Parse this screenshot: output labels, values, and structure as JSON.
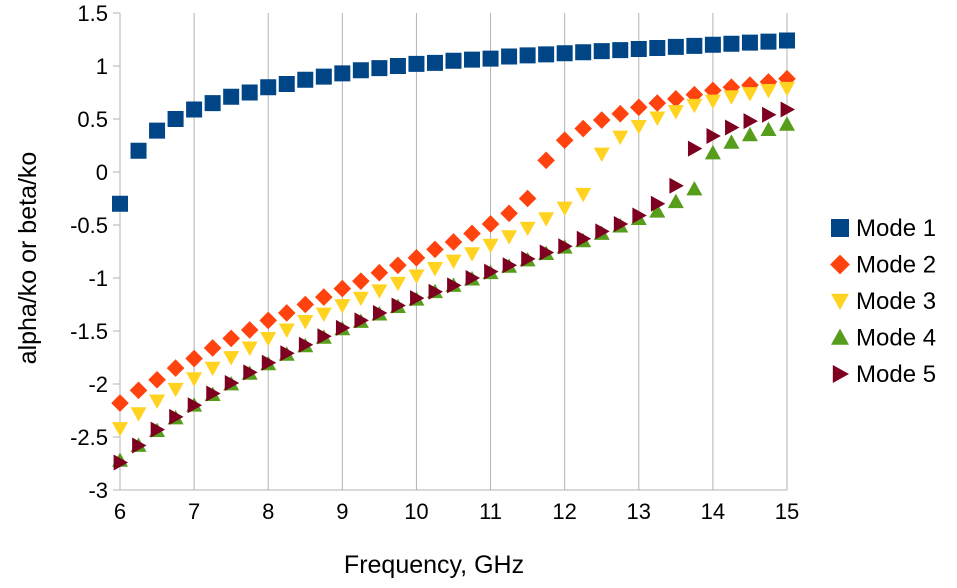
{
  "chart_data": {
    "type": "scatter",
    "title": "",
    "xlabel": "Frequency, GHz",
    "ylabel": "alpha/ko or beta/ko",
    "xlim": [
      6,
      15
    ],
    "ylim": [
      -3,
      1.5
    ],
    "xticks": [
      "6",
      "7",
      "8",
      "9",
      "10",
      "11",
      "12",
      "13",
      "14",
      "15"
    ],
    "yticks": [
      "1.5",
      "1",
      "0.5",
      "0",
      "-0.5",
      "-1",
      "-1.5",
      "-2",
      "-2.5",
      "-3"
    ],
    "grid": "vertical",
    "legend_position": "right",
    "series": [
      {
        "name": "Mode 1",
        "marker": "square",
        "color": "#004586",
        "x": [
          6,
          6.25,
          6.5,
          6.75,
          7,
          7.25,
          7.5,
          7.75,
          8,
          8.25,
          8.5,
          8.75,
          9,
          9.25,
          9.5,
          9.75,
          10,
          10.25,
          10.5,
          10.75,
          11,
          11.25,
          11.5,
          11.75,
          12,
          12.25,
          12.5,
          12.75,
          13,
          13.25,
          13.5,
          13.75,
          14,
          14.25,
          14.5,
          14.75,
          15
        ],
        "y": [
          -0.3,
          0.2,
          0.39,
          0.5,
          0.59,
          0.65,
          0.71,
          0.75,
          0.8,
          0.83,
          0.87,
          0.9,
          0.93,
          0.96,
          0.98,
          1.0,
          1.02,
          1.03,
          1.05,
          1.06,
          1.07,
          1.09,
          1.1,
          1.11,
          1.12,
          1.13,
          1.14,
          1.15,
          1.16,
          1.17,
          1.18,
          1.19,
          1.2,
          1.21,
          1.22,
          1.23,
          1.24
        ]
      },
      {
        "name": "Mode 2",
        "marker": "diamond",
        "color": "#ff420e",
        "x": [
          6,
          6.25,
          6.5,
          6.75,
          7,
          7.25,
          7.5,
          7.75,
          8,
          8.25,
          8.5,
          8.75,
          9,
          9.25,
          9.5,
          9.75,
          10,
          10.25,
          10.5,
          10.75,
          11,
          11.25,
          11.5,
          11.75,
          12,
          12.25,
          12.5,
          12.75,
          13,
          13.25,
          13.5,
          13.75,
          14,
          14.25,
          14.5,
          14.75,
          15
        ],
        "y": [
          -2.18,
          -2.06,
          -1.96,
          -1.85,
          -1.76,
          -1.66,
          -1.57,
          -1.49,
          -1.4,
          -1.33,
          -1.25,
          -1.18,
          -1.1,
          -1.03,
          -0.95,
          -0.88,
          -0.81,
          -0.73,
          -0.66,
          -0.58,
          -0.49,
          -0.39,
          -0.25,
          0.11,
          0.3,
          0.41,
          0.49,
          0.55,
          0.61,
          0.65,
          0.69,
          0.73,
          0.77,
          0.8,
          0.82,
          0.85,
          0.88
        ]
      },
      {
        "name": "Mode 3",
        "marker": "triangle-down",
        "color": "#ffd320",
        "x": [
          6,
          6.25,
          6.5,
          6.75,
          7,
          7.25,
          7.5,
          7.75,
          8,
          8.25,
          8.5,
          8.75,
          9,
          9.25,
          9.5,
          9.75,
          10,
          10.25,
          10.5,
          10.75,
          11,
          11.25,
          11.5,
          11.75,
          12,
          12.25,
          12.5,
          12.75,
          13,
          13.25,
          13.5,
          13.75,
          14,
          14.25,
          14.5,
          14.75,
          15
        ],
        "y": [
          -2.42,
          -2.28,
          -2.16,
          -2.05,
          -1.95,
          -1.85,
          -1.75,
          -1.66,
          -1.57,
          -1.49,
          -1.41,
          -1.34,
          -1.26,
          -1.19,
          -1.12,
          -1.05,
          -0.98,
          -0.91,
          -0.84,
          -0.77,
          -0.69,
          -0.61,
          -0.53,
          -0.44,
          -0.34,
          -0.21,
          0.17,
          0.33,
          0.43,
          0.51,
          0.57,
          0.63,
          0.67,
          0.71,
          0.74,
          0.77,
          0.79
        ]
      },
      {
        "name": "Mode 4",
        "marker": "triangle-up",
        "color": "#579d1c",
        "x": [
          6,
          6.25,
          6.5,
          6.75,
          7,
          7.25,
          7.5,
          7.75,
          8,
          8.25,
          8.5,
          8.75,
          9,
          9.25,
          9.5,
          9.75,
          10,
          10.25,
          10.5,
          10.75,
          11,
          11.25,
          11.5,
          11.75,
          12,
          12.25,
          12.5,
          12.75,
          13,
          13.25,
          13.5,
          13.75,
          14,
          14.25,
          14.5,
          14.75,
          15
        ],
        "y": [
          -2.72,
          -2.58,
          -2.44,
          -2.32,
          -2.2,
          -2.1,
          -2.0,
          -1.9,
          -1.81,
          -1.72,
          -1.64,
          -1.56,
          -1.48,
          -1.41,
          -1.34,
          -1.27,
          -1.2,
          -1.13,
          -1.07,
          -1.01,
          -0.95,
          -0.89,
          -0.83,
          -0.77,
          -0.71,
          -0.65,
          -0.58,
          -0.51,
          -0.44,
          -0.37,
          -0.28,
          -0.16,
          0.18,
          0.28,
          0.35,
          0.4,
          0.45
        ]
      },
      {
        "name": "Mode 5",
        "marker": "triangle-right",
        "color": "#7e0021",
        "x": [
          6,
          6.25,
          6.5,
          6.75,
          7,
          7.25,
          7.5,
          7.75,
          8,
          8.25,
          8.5,
          8.75,
          9,
          9.25,
          9.5,
          9.75,
          10,
          10.25,
          10.5,
          10.75,
          11,
          11.25,
          11.5,
          11.75,
          12,
          12.25,
          12.5,
          12.75,
          13,
          13.25,
          13.5,
          13.75,
          14,
          14.25,
          14.5,
          14.75,
          15
        ],
        "y": [
          -2.74,
          -2.58,
          -2.43,
          -2.31,
          -2.2,
          -2.09,
          -1.99,
          -1.89,
          -1.8,
          -1.71,
          -1.63,
          -1.55,
          -1.47,
          -1.4,
          -1.33,
          -1.26,
          -1.19,
          -1.13,
          -1.07,
          -1.0,
          -0.94,
          -0.88,
          -0.82,
          -0.76,
          -0.7,
          -0.63,
          -0.56,
          -0.49,
          -0.41,
          -0.3,
          -0.13,
          0.22,
          0.34,
          0.42,
          0.48,
          0.54,
          0.59
        ]
      }
    ]
  }
}
